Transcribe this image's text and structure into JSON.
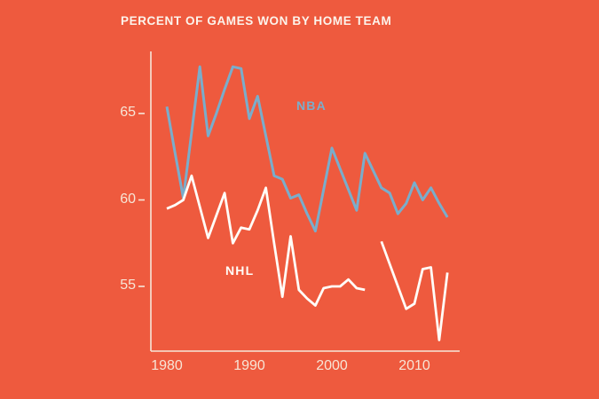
{
  "colors": {
    "background": "#ee5a3e",
    "nba_line": "#7aadcb",
    "nhl_line": "#fffdf8",
    "axis": "#f6e7d9",
    "tick_labels": "#f7e5d6",
    "title": "#fcf4ec"
  },
  "chart_data": {
    "type": "line",
    "title": "PERCENT OF GAMES WON BY HOME TEAM",
    "xlabel": "",
    "ylabel": "",
    "xlim": [
      1980,
      2014
    ],
    "ylim": [
      51,
      69
    ],
    "grid": false,
    "legend": "inline-labels",
    "xticks": [
      1980,
      1990,
      2000,
      2010
    ],
    "yticks": [
      65,
      60,
      55
    ],
    "x": [
      1980,
      1981,
      1982,
      1983,
      1984,
      1985,
      1986,
      1987,
      1988,
      1989,
      1990,
      1991,
      1992,
      1993,
      1994,
      1995,
      1996,
      1997,
      1998,
      1999,
      2000,
      2001,
      2002,
      2003,
      2004,
      2005,
      2006,
      2007,
      2008,
      2009,
      2010,
      2011,
      2012,
      2013,
      2014
    ],
    "series": [
      {
        "name": "NBA",
        "color": "#7aadcb",
        "values": [
          65.4,
          62.7,
          60.1,
          63.9,
          67.7,
          63.7,
          65.0,
          66.4,
          67.7,
          67.6,
          64.7,
          66.0,
          63.7,
          61.4,
          61.2,
          60.1,
          60.3,
          59.2,
          58.2,
          60.6,
          63.0,
          61.8,
          60.6,
          59.4,
          62.7,
          61.7,
          60.7,
          60.4,
          59.2,
          59.8,
          61.0,
          60.0,
          60.7,
          59.8,
          59.0
        ]
      },
      {
        "name": "NHL",
        "color": "#fffdf8",
        "values": [
          59.5,
          59.7,
          60.0,
          61.4,
          59.6,
          57.8,
          59.1,
          60.4,
          57.5,
          58.4,
          58.3,
          59.4,
          60.7,
          57.5,
          54.4,
          57.9,
          54.8,
          54.3,
          53.9,
          54.9,
          55.0,
          55.0,
          55.4,
          54.9,
          54.8,
          null,
          57.6,
          56.3,
          55.0,
          53.7,
          54.0,
          56.0,
          56.1,
          51.9,
          55.8
        ]
      }
    ],
    "note_gap": "NHL series has no value for 2005 (season not played)"
  }
}
